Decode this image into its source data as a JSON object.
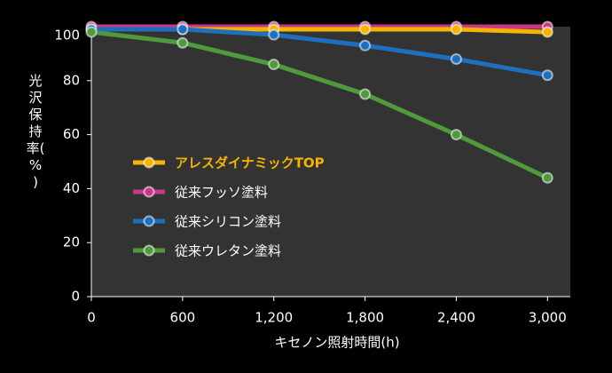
{
  "chart_data": {
    "type": "line",
    "x_label": "キセノン照射時間(h)",
    "y_label": "光沢保持率(%)",
    "x": [
      0,
      600,
      1200,
      1800,
      2400,
      3000
    ],
    "xlim": [
      0,
      3150
    ],
    "xticks": [
      0,
      600,
      {
        "value": 1200,
        "label": "1,200"
      },
      {
        "value": 1800,
        "label": "1,800"
      },
      {
        "value": 2400,
        "label": "2,400"
      },
      {
        "value": 3000,
        "label": "3,000"
      }
    ],
    "ylim": [
      0,
      100
    ],
    "yticks": [
      0,
      20,
      40,
      60,
      80,
      100
    ],
    "legend": "center-left",
    "series": [
      {
        "name": "従来フッソ塗料",
        "color": "#c8388a",
        "values": [
          100,
          100,
          100,
          100,
          100,
          100
        ]
      },
      {
        "name": "アレスダイナミックTOP",
        "color": "#f5b400",
        "values": [
          99,
          99,
          99,
          99,
          99,
          98
        ]
      },
      {
        "name": "従来シリコン塗料",
        "color": "#1f6fbf",
        "values": [
          99,
          99,
          97,
          93,
          88,
          82
        ]
      },
      {
        "name": "従来ウレタン塗料",
        "color": "#4e9a3c",
        "values": [
          98,
          94,
          86,
          75,
          60,
          44
        ]
      }
    ],
    "legend_order": [
      1,
      0,
      2,
      3
    ]
  }
}
